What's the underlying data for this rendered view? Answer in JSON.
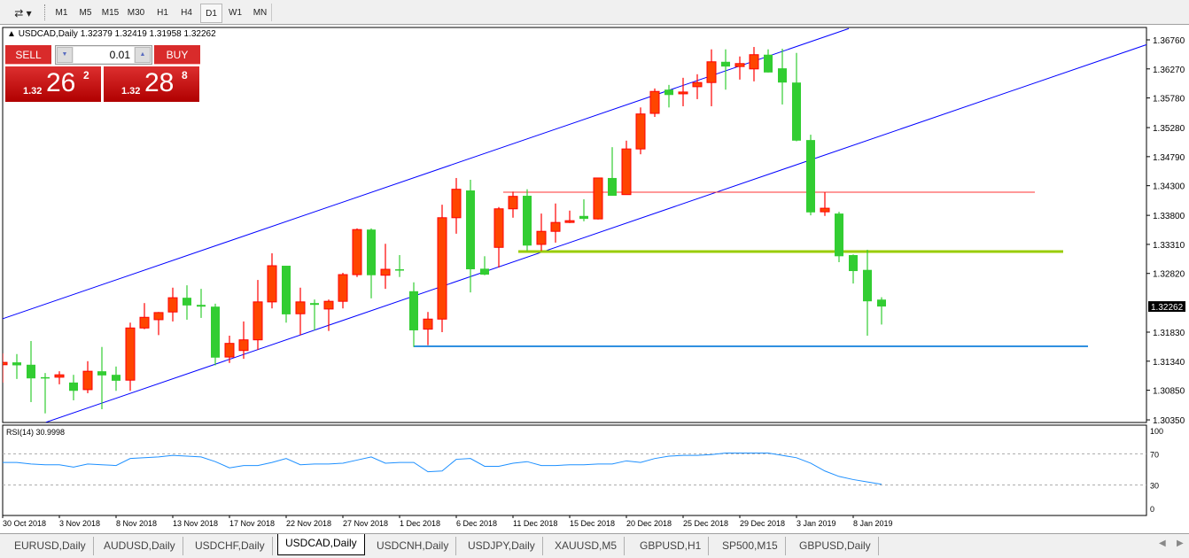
{
  "toolbar": {
    "timeframes": [
      "M1",
      "M5",
      "M15",
      "M30",
      "H1",
      "H4",
      "D1",
      "W1",
      "MN"
    ],
    "active": "D1",
    "tools_icon": "line-studies-icon"
  },
  "chart_header": {
    "symbol": "USDCAD,Daily",
    "ohlc": "1.32379 1.32419 1.31958 1.32262"
  },
  "trade_panel": {
    "sell_label": "SELL",
    "buy_label": "BUY",
    "lot": "0.01",
    "sell_prefix": "1.32",
    "sell_big": "26",
    "sell_sup": "2",
    "buy_prefix": "1.32",
    "buy_big": "28",
    "buy_sup": "8"
  },
  "colors": {
    "bull": "#ff4500",
    "bull_border": "#ff0000",
    "bear": "#32cd32",
    "channel": "#0000ff",
    "level_red": "#ff3030",
    "level_green": "#99cc00",
    "level_blue": "#3090e0",
    "rsi": "#1e90ff"
  },
  "chart_data": {
    "type": "candlestick",
    "price_ticks": [
      "1.36760",
      "1.36270",
      "1.35780",
      "1.35280",
      "1.34790",
      "1.34300",
      "1.33800",
      "1.33310",
      "1.32820",
      "1.31830",
      "1.31340",
      "1.30850",
      "1.30350"
    ],
    "current_price": "1.32262",
    "ylim": [
      1.3035,
      1.3676
    ],
    "date_labels": [
      "30 Oct 2018",
      "3 Nov 2018",
      "8 Nov 2018",
      "13 Nov 2018",
      "17 Nov 2018",
      "22 Nov 2018",
      "27 Nov 2018",
      "1 Dec 2018",
      "6 Dec 2018",
      "11 Dec 2018",
      "15 Dec 2018",
      "20 Dec 2018",
      "25 Dec 2018",
      "29 Dec 2018",
      "3 Jan 2019",
      "8 Jan 2019"
    ],
    "ohlc": [
      [
        1.3128,
        1.3147,
        1.3098,
        1.3132
      ],
      [
        1.3132,
        1.3146,
        1.3104,
        1.3127
      ],
      [
        1.3128,
        1.3168,
        1.3065,
        1.3105
      ],
      [
        1.3107,
        1.3114,
        1.3046,
        1.3106
      ],
      [
        1.3107,
        1.3117,
        1.3095,
        1.3111
      ],
      [
        1.3098,
        1.3111,
        1.3068,
        1.3084
      ],
      [
        1.3086,
        1.3134,
        1.308,
        1.3117
      ],
      [
        1.3117,
        1.3158,
        1.3053,
        1.311
      ],
      [
        1.3111,
        1.3125,
        1.3084,
        1.3101
      ],
      [
        1.3102,
        1.3199,
        1.3084,
        1.319
      ],
      [
        1.319,
        1.3232,
        1.3188,
        1.3208
      ],
      [
        1.3204,
        1.3217,
        1.3178,
        1.3216
      ],
      [
        1.3217,
        1.3258,
        1.3201,
        1.3241
      ],
      [
        1.3241,
        1.3262,
        1.3204,
        1.3228
      ],
      [
        1.3229,
        1.3256,
        1.3207,
        1.3226
      ],
      [
        1.3226,
        1.3231,
        1.3127,
        1.314
      ],
      [
        1.3141,
        1.3177,
        1.3131,
        1.3164
      ],
      [
        1.3152,
        1.3201,
        1.3138,
        1.317
      ],
      [
        1.317,
        1.3271,
        1.3153,
        1.3234
      ],
      [
        1.3234,
        1.3316,
        1.3223,
        1.3295
      ],
      [
        1.3295,
        1.3295,
        1.3199,
        1.3213
      ],
      [
        1.3214,
        1.3258,
        1.3178,
        1.3234
      ],
      [
        1.3232,
        1.3238,
        1.3186,
        1.3229
      ],
      [
        1.3222,
        1.3238,
        1.3185,
        1.3235
      ],
      [
        1.3235,
        1.3283,
        1.3223,
        1.328
      ],
      [
        1.328,
        1.3358,
        1.3276,
        1.3356
      ],
      [
        1.3356,
        1.3358,
        1.324,
        1.3279
      ],
      [
        1.3279,
        1.3332,
        1.3256,
        1.3289
      ],
      [
        1.3289,
        1.3313,
        1.3276,
        1.3288
      ],
      [
        1.3252,
        1.3267,
        1.3158,
        1.3186
      ],
      [
        1.3188,
        1.3217,
        1.3161,
        1.3205
      ],
      [
        1.3205,
        1.3398,
        1.3183,
        1.3376
      ],
      [
        1.3376,
        1.3443,
        1.3349,
        1.3424
      ],
      [
        1.3422,
        1.344,
        1.325,
        1.3289
      ],
      [
        1.329,
        1.3311,
        1.3279,
        1.328
      ],
      [
        1.3326,
        1.3394,
        1.3292,
        1.3391
      ],
      [
        1.3391,
        1.342,
        1.3376,
        1.3412
      ],
      [
        1.3413,
        1.3424,
        1.332,
        1.3329
      ],
      [
        1.3331,
        1.3383,
        1.332,
        1.3353
      ],
      [
        1.3353,
        1.34,
        1.3334,
        1.3368
      ],
      [
        1.3368,
        1.3388,
        1.3367,
        1.3371
      ],
      [
        1.3379,
        1.3407,
        1.337,
        1.3374
      ],
      [
        1.3374,
        1.3443,
        1.3373,
        1.3443
      ],
      [
        1.3443,
        1.3495,
        1.3413,
        1.3413
      ],
      [
        1.3415,
        1.3506,
        1.3415,
        1.3492
      ],
      [
        1.3492,
        1.3562,
        1.3483,
        1.3551
      ],
      [
        1.3552,
        1.3594,
        1.3546,
        1.3589
      ],
      [
        1.3592,
        1.36,
        1.3562,
        1.3583
      ],
      [
        1.3585,
        1.3612,
        1.3564,
        1.3588
      ],
      [
        1.3597,
        1.3618,
        1.3576,
        1.3604
      ],
      [
        1.3604,
        1.366,
        1.3564,
        1.3639
      ],
      [
        1.3639,
        1.366,
        1.3592,
        1.3631
      ],
      [
        1.3631,
        1.3648,
        1.3609,
        1.3636
      ],
      [
        1.3627,
        1.3664,
        1.3606,
        1.3651
      ],
      [
        1.3651,
        1.366,
        1.3621,
        1.3621
      ],
      [
        1.3628,
        1.3661,
        1.3567,
        1.3604
      ],
      [
        1.3604,
        1.3654,
        1.3505,
        1.3506
      ],
      [
        1.3507,
        1.3516,
        1.338,
        1.3385
      ],
      [
        1.3386,
        1.3419,
        1.3379,
        1.3392
      ],
      [
        1.3383,
        1.3386,
        1.3301,
        1.3311
      ],
      [
        1.3313,
        1.3314,
        1.3265,
        1.3286
      ],
      [
        1.3288,
        1.3322,
        1.3177,
        1.3235
      ],
      [
        1.32379,
        1.32419,
        1.31958,
        1.32262
      ]
    ],
    "channel_upper": [
      1.3204,
      1.3695
    ],
    "channel_lower": [
      1.3031,
      1.3668
    ],
    "levels": [
      1.3419,
      1.3319,
      1.3159
    ],
    "rsi": {
      "label": "RSI(14) 30.9998",
      "ticks": [
        "100",
        "70",
        "30",
        "0"
      ],
      "levels": [
        70,
        30
      ],
      "values": [
        59,
        59,
        57,
        56,
        56,
        53,
        57,
        56,
        55,
        64,
        65,
        66,
        68,
        67,
        66,
        60,
        52,
        55,
        55,
        59,
        64,
        56,
        57,
        57,
        58,
        62,
        66,
        58,
        59,
        59,
        47,
        48,
        63,
        64,
        54,
        54,
        58,
        60,
        55,
        55,
        56,
        56,
        57,
        57,
        61,
        59,
        64,
        67,
        68,
        68,
        69,
        71,
        71,
        71,
        71,
        68,
        65,
        58,
        48,
        41,
        37,
        34,
        31
      ]
    }
  },
  "tabs": {
    "items": [
      "EURUSD,Daily",
      "AUDUSD,Daily",
      "USDCHF,Daily",
      "USDCAD,Daily",
      "USDCNH,Daily",
      "USDJPY,Daily",
      "XAUUSD,M5",
      "GBPUSD,H1",
      "SP500,M15",
      "GBPUSD,Daily"
    ],
    "active": "USDCAD,Daily"
  }
}
